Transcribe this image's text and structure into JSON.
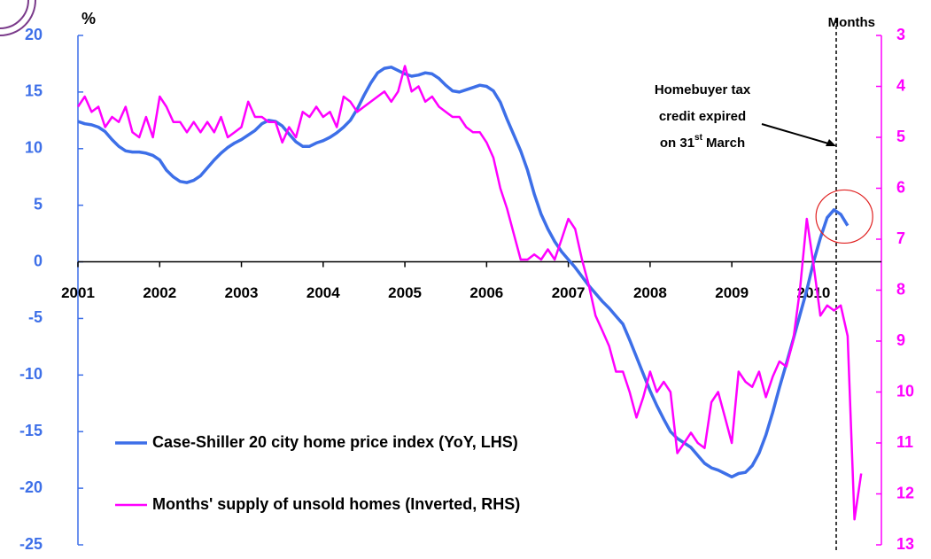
{
  "chart_data": {
    "type": "line",
    "ylabel": "%",
    "y2label": "Months",
    "annotation": [
      "Homebuyer tax",
      "credit expired",
      "on 31",
      "st",
      "March"
    ],
    "legend": "lower left",
    "xlim": [
      2001,
      2010.83
    ],
    "xticks": [
      2001,
      2002,
      2003,
      2004,
      2005,
      2006,
      2007,
      2008,
      2009,
      2010
    ],
    "ylim": [
      -25,
      20
    ],
    "yticks": [
      -25,
      -20,
      -15,
      -10,
      -5,
      0,
      5,
      10,
      15,
      20
    ],
    "y2lim": [
      13,
      3
    ],
    "y2ticks": [
      3,
      4,
      5,
      6,
      7,
      8,
      9,
      10,
      11,
      12,
      13
    ],
    "x": [
      2001.0,
      2001.083,
      2001.167,
      2001.25,
      2001.333,
      2001.417,
      2001.5,
      2001.583,
      2001.667,
      2001.75,
      2001.833,
      2001.917,
      2002.0,
      2002.083,
      2002.167,
      2002.25,
      2002.333,
      2002.417,
      2002.5,
      2002.583,
      2002.667,
      2002.75,
      2002.833,
      2002.917,
      2003.0,
      2003.083,
      2003.167,
      2003.25,
      2003.333,
      2003.417,
      2003.5,
      2003.583,
      2003.667,
      2003.75,
      2003.833,
      2003.917,
      2004.0,
      2004.083,
      2004.167,
      2004.25,
      2004.333,
      2004.417,
      2004.5,
      2004.583,
      2004.667,
      2004.75,
      2004.833,
      2004.917,
      2005.0,
      2005.083,
      2005.167,
      2005.25,
      2005.333,
      2005.417,
      2005.5,
      2005.583,
      2005.667,
      2005.75,
      2005.833,
      2005.917,
      2006.0,
      2006.083,
      2006.167,
      2006.25,
      2006.333,
      2006.417,
      2006.5,
      2006.583,
      2006.667,
      2006.75,
      2006.833,
      2006.917,
      2007.0,
      2007.083,
      2007.167,
      2007.25,
      2007.333,
      2007.417,
      2007.5,
      2007.583,
      2007.667,
      2007.75,
      2007.833,
      2007.917,
      2008.0,
      2008.083,
      2008.167,
      2008.25,
      2008.333,
      2008.417,
      2008.5,
      2008.583,
      2008.667,
      2008.75,
      2008.833,
      2008.917,
      2009.0,
      2009.083,
      2009.167,
      2009.25,
      2009.333,
      2009.417,
      2009.5,
      2009.583,
      2009.667,
      2009.75,
      2009.833,
      2009.917,
      2010.0,
      2010.083,
      2010.167,
      2010.25,
      2010.333,
      2010.417,
      2010.5,
      2010.583
    ],
    "series": [
      {
        "name": "Case-Shiller 20 city home price index (YoY, LHS)",
        "color": "#3d6fe8",
        "axis": "y",
        "values": [
          12.4,
          12.2,
          12.1,
          11.9,
          11.5,
          10.8,
          10.2,
          9.8,
          9.7,
          9.7,
          9.6,
          9.4,
          9.0,
          8.1,
          7.5,
          7.1,
          7.0,
          7.2,
          7.6,
          8.3,
          9.0,
          9.6,
          10.1,
          10.5,
          10.8,
          11.2,
          11.6,
          12.2,
          12.5,
          12.4,
          12.0,
          11.3,
          10.6,
          10.2,
          10.2,
          10.5,
          10.7,
          11.0,
          11.4,
          11.9,
          12.5,
          13.5,
          14.7,
          15.8,
          16.7,
          17.1,
          17.2,
          16.9,
          16.6,
          16.4,
          16.5,
          16.7,
          16.6,
          16.2,
          15.6,
          15.1,
          15.0,
          15.2,
          15.4,
          15.6,
          15.5,
          15.1,
          14.1,
          12.6,
          11.2,
          9.8,
          8.1,
          6.0,
          4.2,
          2.9,
          1.8,
          0.9,
          0.2,
          -0.5,
          -1.3,
          -2.1,
          -2.8,
          -3.5,
          -4.1,
          -4.8,
          -5.5,
          -6.9,
          -8.4,
          -9.9,
          -11.4,
          -12.7,
          -13.9,
          -15.0,
          -15.6,
          -16.0,
          -16.4,
          -17.1,
          -17.8,
          -18.2,
          -18.4,
          -18.7,
          -19.0,
          -18.7,
          -18.6,
          -18.0,
          -16.9,
          -15.3,
          -13.3,
          -11.1,
          -9.0,
          -6.9,
          -4.7,
          -2.5,
          0.0,
          2.1,
          3.9,
          4.6,
          4.2,
          3.2,
          null,
          null
        ]
      },
      {
        "name": "Months' supply of unsold homes (Inverted, RHS)",
        "color": "#ff00ff",
        "axis": "y2",
        "values": [
          4.4,
          4.2,
          4.5,
          4.4,
          4.8,
          4.6,
          4.7,
          4.4,
          4.9,
          5.0,
          4.6,
          5.0,
          4.2,
          4.4,
          4.7,
          4.7,
          4.9,
          4.7,
          4.9,
          4.7,
          4.9,
          4.6,
          5.0,
          4.9,
          4.8,
          4.3,
          4.6,
          4.6,
          4.7,
          4.7,
          5.1,
          4.8,
          5.0,
          4.5,
          4.6,
          4.4,
          4.6,
          4.5,
          4.8,
          4.2,
          4.3,
          4.5,
          4.4,
          4.3,
          4.2,
          4.1,
          4.3,
          4.1,
          3.6,
          4.1,
          4.0,
          4.3,
          4.2,
          4.4,
          4.5,
          4.6,
          4.6,
          4.8,
          4.9,
          4.9,
          5.1,
          5.4,
          6.0,
          6.4,
          6.9,
          7.4,
          7.4,
          7.3,
          7.4,
          7.2,
          7.4,
          7.0,
          6.6,
          6.8,
          7.4,
          7.9,
          8.5,
          8.8,
          9.1,
          9.6,
          9.6,
          10.0,
          10.5,
          10.1,
          9.6,
          10.0,
          9.8,
          10.0,
          11.2,
          11.0,
          10.8,
          11.0,
          11.1,
          10.2,
          10.0,
          10.5,
          11.0,
          9.6,
          9.8,
          9.9,
          9.6,
          10.1,
          9.7,
          9.4,
          9.5,
          9.0,
          8.0,
          6.6,
          7.5,
          8.5,
          8.3,
          8.4,
          8.3,
          8.9,
          12.5,
          11.6
        ]
      }
    ]
  }
}
